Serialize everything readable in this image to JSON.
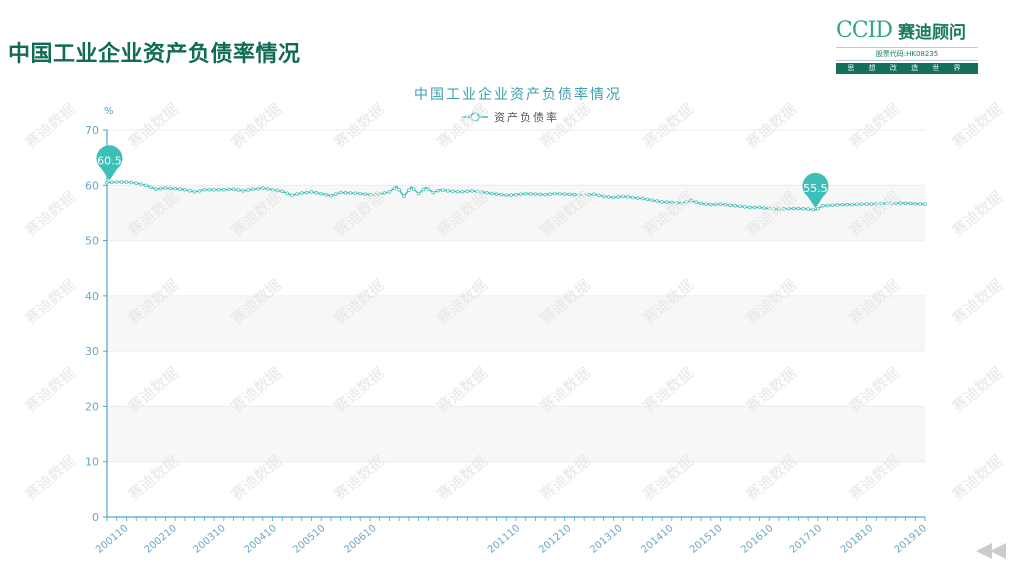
{
  "slide": {
    "title": "中国工业企业资产负债率情况"
  },
  "logo": {
    "mark": "CCID",
    "name": "赛迪顾问",
    "code": "股票代码:HK08235",
    "slogan": "思 想 改 造 世 界"
  },
  "watermark": "赛迪数据",
  "colors": {
    "series": "#3cbfb7",
    "title": "#3a9fae",
    "axis": "#4aa6c8",
    "tick_label": "#6aa8c5"
  },
  "chart_data": {
    "type": "line",
    "title": "中国工业企业资产负债率情况",
    "ylabel": "%",
    "ylim": [
      0,
      70
    ],
    "yticks": [
      0,
      10,
      20,
      30,
      40,
      50,
      60,
      70
    ],
    "grid": true,
    "legend_position": "top-center",
    "xtick_labels": [
      "200110",
      "200210",
      "200310",
      "200410",
      "200510",
      "200610",
      "201110",
      "201210",
      "201310",
      "201410",
      "201510",
      "201610",
      "201710",
      "201810",
      "201910"
    ],
    "xtick_indices": [
      8,
      28,
      48,
      69,
      89,
      110,
      169,
      190,
      211,
      232,
      252,
      273,
      293,
      314,
      336
    ],
    "series": [
      {
        "name": "资产负债率",
        "start_index": 0,
        "end_index": 336,
        "points": [
          [
            0,
            60.5
          ],
          [
            4,
            60.6
          ],
          [
            8,
            60.6
          ],
          [
            12,
            60.4
          ],
          [
            16,
            60.0
          ],
          [
            20,
            59.3
          ],
          [
            24,
            59.5
          ],
          [
            28,
            59.4
          ],
          [
            32,
            59.2
          ],
          [
            36,
            58.8
          ],
          [
            40,
            59.2
          ],
          [
            44,
            59.2
          ],
          [
            48,
            59.2
          ],
          [
            52,
            59.3
          ],
          [
            56,
            59.0
          ],
          [
            60,
            59.3
          ],
          [
            64,
            59.5
          ],
          [
            68,
            59.2
          ],
          [
            72,
            58.9
          ],
          [
            76,
            58.2
          ],
          [
            80,
            58.6
          ],
          [
            84,
            58.8
          ],
          [
            88,
            58.5
          ],
          [
            92,
            58.1
          ],
          [
            96,
            58.7
          ],
          [
            100,
            58.6
          ],
          [
            104,
            58.5
          ],
          [
            108,
            58.3
          ],
          [
            112,
            58.4
          ],
          [
            116,
            58.8
          ],
          [
            119,
            59.8
          ],
          [
            122,
            58.0
          ],
          [
            125,
            59.7
          ],
          [
            128,
            58.5
          ],
          [
            131,
            59.6
          ],
          [
            134,
            58.7
          ],
          [
            137,
            59.2
          ],
          [
            140,
            59.0
          ],
          [
            145,
            58.8
          ],
          [
            150,
            59.0
          ],
          [
            155,
            58.7
          ],
          [
            160,
            58.4
          ],
          [
            164,
            58.2
          ],
          [
            168,
            58.3
          ],
          [
            172,
            58.5
          ],
          [
            176,
            58.4
          ],
          [
            180,
            58.3
          ],
          [
            184,
            58.5
          ],
          [
            188,
            58.4
          ],
          [
            192,
            58.3
          ],
          [
            196,
            58.2
          ],
          [
            200,
            58.4
          ],
          [
            204,
            58.0
          ],
          [
            208,
            57.8
          ],
          [
            212,
            58.0
          ],
          [
            216,
            57.8
          ],
          [
            220,
            57.6
          ],
          [
            224,
            57.3
          ],
          [
            228,
            57.0
          ],
          [
            232,
            56.9
          ],
          [
            236,
            56.8
          ],
          [
            240,
            57.2
          ],
          [
            244,
            56.7
          ],
          [
            248,
            56.5
          ],
          [
            252,
            56.6
          ],
          [
            256,
            56.4
          ],
          [
            260,
            56.2
          ],
          [
            264,
            56.0
          ],
          [
            268,
            56.0
          ],
          [
            272,
            55.8
          ],
          [
            276,
            55.7
          ],
          [
            280,
            55.8
          ],
          [
            284,
            55.8
          ],
          [
            288,
            55.7
          ],
          [
            291,
            55.5
          ],
          [
            294,
            56.3
          ],
          [
            298,
            56.4
          ],
          [
            302,
            56.5
          ],
          [
            306,
            56.5
          ],
          [
            310,
            56.6
          ],
          [
            314,
            56.6
          ],
          [
            318,
            56.7
          ],
          [
            322,
            56.7
          ],
          [
            326,
            56.8
          ],
          [
            330,
            56.7
          ],
          [
            336,
            56.6
          ]
        ]
      }
    ],
    "markers": [
      {
        "label": "60.5",
        "index": 1,
        "value": 60.5
      },
      {
        "label": "55.5",
        "index": 291,
        "value": 55.5
      }
    ]
  }
}
